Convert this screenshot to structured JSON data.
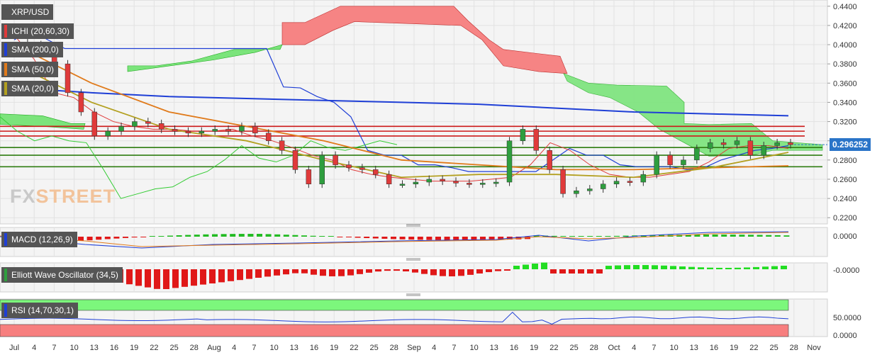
{
  "symbol": "XRP/USD",
  "last_price": "0.296252",
  "indicators": {
    "ichimoku": "ICHI (20,60,30)",
    "sma200": "SMA (200,0)",
    "sma50": "SMA (50,0)",
    "sma20": "SMA (20,0)",
    "macd": "MACD (12,26,9)",
    "ewo": "Elliott Wave Oscillator (34,5)",
    "rsi": "RSI (14,70,30,1)"
  },
  "colors": {
    "bull": "#2e9e3e",
    "bear": "#e03a3a",
    "sma200": "#1f3fd6",
    "sma50": "#e07a1a",
    "sma20": "#b3a020",
    "kumo_bull": "#7be47b",
    "kumo_bear": "#f77f7f",
    "resistance": "#cc1a1a",
    "support": "#2f7d12"
  },
  "logo": {
    "fx": "FX",
    "street": "STREET"
  },
  "chart_data": {
    "type": "candlestick",
    "title": "XRP/USD",
    "price_axis": {
      "ticks": [
        "0.4400",
        "0.4200",
        "0.4000",
        "0.3800",
        "0.3600",
        "0.3400",
        "0.3200",
        "0.3000",
        "0.2800",
        "0.2600",
        "0.2400",
        "0.2200"
      ],
      "ylim": [
        0.215,
        0.445
      ]
    },
    "macd_axis": {
      "ticks": [
        "0.0000"
      ]
    },
    "ewo_axis": {
      "ticks": [
        "-0.0000"
      ]
    },
    "rsi_axis": {
      "ticks": [
        "50.0000",
        "0.0000"
      ]
    },
    "x_tick_labels": [
      "Jul",
      "4",
      "7",
      "10",
      "13",
      "16",
      "19",
      "22",
      "25",
      "28",
      "Aug",
      "4",
      "7",
      "10",
      "13",
      "16",
      "19",
      "22",
      "25",
      "28",
      "Sep",
      "4",
      "7",
      "10",
      "13",
      "16",
      "19",
      "22",
      "25",
      "28",
      "Oct",
      "4",
      "7",
      "10",
      "13",
      "16",
      "19",
      "22",
      "25",
      "28",
      "Nov"
    ],
    "horizontal_levels": {
      "resistance": [
        0.315,
        0.31,
        0.305
      ],
      "support": [
        0.293,
        0.285,
        0.273
      ]
    },
    "close_series": [
      0.402,
      0.4,
      0.396,
      0.38,
      0.35,
      0.33,
      0.305,
      0.31,
      0.315,
      0.32,
      0.318,
      0.312,
      0.31,
      0.308,
      0.31,
      0.312,
      0.31,
      0.315,
      0.308,
      0.3,
      0.29,
      0.27,
      0.255,
      0.285,
      0.275,
      0.272,
      0.27,
      0.265,
      0.255,
      0.255,
      0.257,
      0.26,
      0.258,
      0.256,
      0.255,
      0.256,
      0.257,
      0.3,
      0.312,
      0.29,
      0.27,
      0.245,
      0.248,
      0.25,
      0.255,
      0.258,
      0.257,
      0.265,
      0.285,
      0.275,
      0.28,
      0.292,
      0.298,
      0.296,
      0.3,
      0.285,
      0.295,
      0.298,
      0.296
    ],
    "sma200_series": [
      0.355,
      0.35,
      0.346,
      0.344,
      0.342,
      0.34,
      0.338,
      0.334,
      0.33,
      0.328,
      0.326
    ],
    "sma50_series": [
      0.4,
      0.36,
      0.33,
      0.315,
      0.3,
      0.28,
      0.275,
      0.27,
      0.27,
      0.272,
      0.274
    ],
    "sma20_series": [
      0.38,
      0.34,
      0.312,
      0.3,
      0.28,
      0.262,
      0.265,
      0.265,
      0.262,
      0.272,
      0.288
    ],
    "rsi_value": 52
  }
}
